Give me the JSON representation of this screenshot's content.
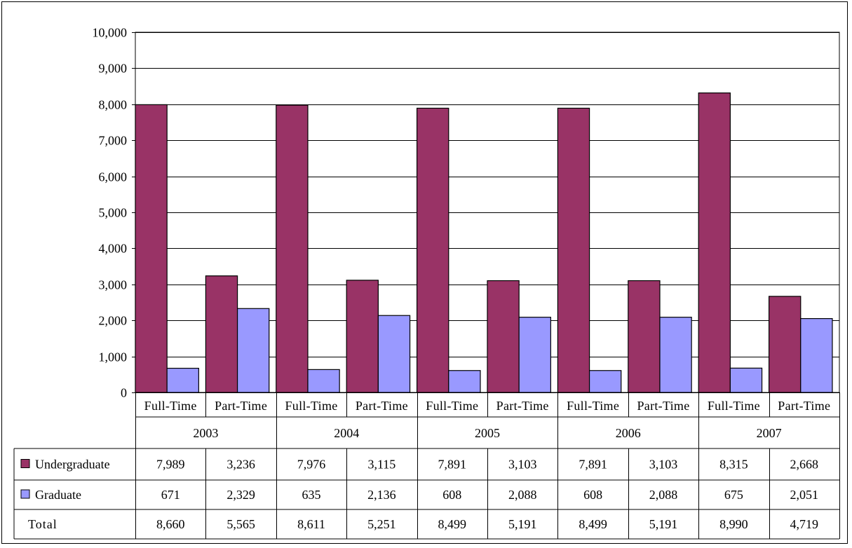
{
  "chart_data": {
    "type": "bar",
    "title": "",
    "xlabel": "",
    "ylabel": "",
    "ylim": [
      0,
      10000
    ],
    "ytick_step": 1000,
    "ytick_labels": [
      "0",
      "1,000",
      "2,000",
      "3,000",
      "4,000",
      "5,000",
      "6,000",
      "7,000",
      "8,000",
      "9,000",
      "10,000"
    ],
    "grid": true,
    "legend": "in data table, left",
    "groups": [
      "2003",
      "2004",
      "2005",
      "2006",
      "2007"
    ],
    "subcategories": [
      "Full-Time",
      "Part-Time"
    ],
    "categories": [
      "2003 Full-Time",
      "2003 Part-Time",
      "2004 Full-Time",
      "2004 Part-Time",
      "2005 Full-Time",
      "2005 Part-Time",
      "2006 Full-Time",
      "2006 Part-Time",
      "2007 Full-Time",
      "2007 Part-Time"
    ],
    "series": [
      {
        "name": "Undergraduate",
        "color": "#993366",
        "values": [
          7989,
          3236,
          7976,
          3115,
          7891,
          3103,
          7891,
          3103,
          8315,
          2668
        ],
        "labels": [
          "7,989",
          "3,236",
          "7,976",
          "3,115",
          "7,891",
          "3,103",
          "7,891",
          "3,103",
          "8,315",
          "2,668"
        ]
      },
      {
        "name": "Graduate",
        "color": "#9999ff",
        "values": [
          671,
          2329,
          635,
          2136,
          608,
          2088,
          608,
          2088,
          675,
          2051
        ],
        "labels": [
          "671",
          "2,329",
          "635",
          "2,136",
          "608",
          "2,088",
          "608",
          "2,088",
          "675",
          "2,051"
        ]
      }
    ],
    "total": {
      "name": "Total",
      "values": [
        8660,
        5565,
        8611,
        5251,
        8499,
        5191,
        8499,
        5191,
        8990,
        4719
      ],
      "labels": [
        "8,660",
        "5,565",
        "8,611",
        "5,251",
        "8,499",
        "5,191",
        "8,499",
        "5,191",
        "8,990",
        "4,719"
      ]
    }
  }
}
